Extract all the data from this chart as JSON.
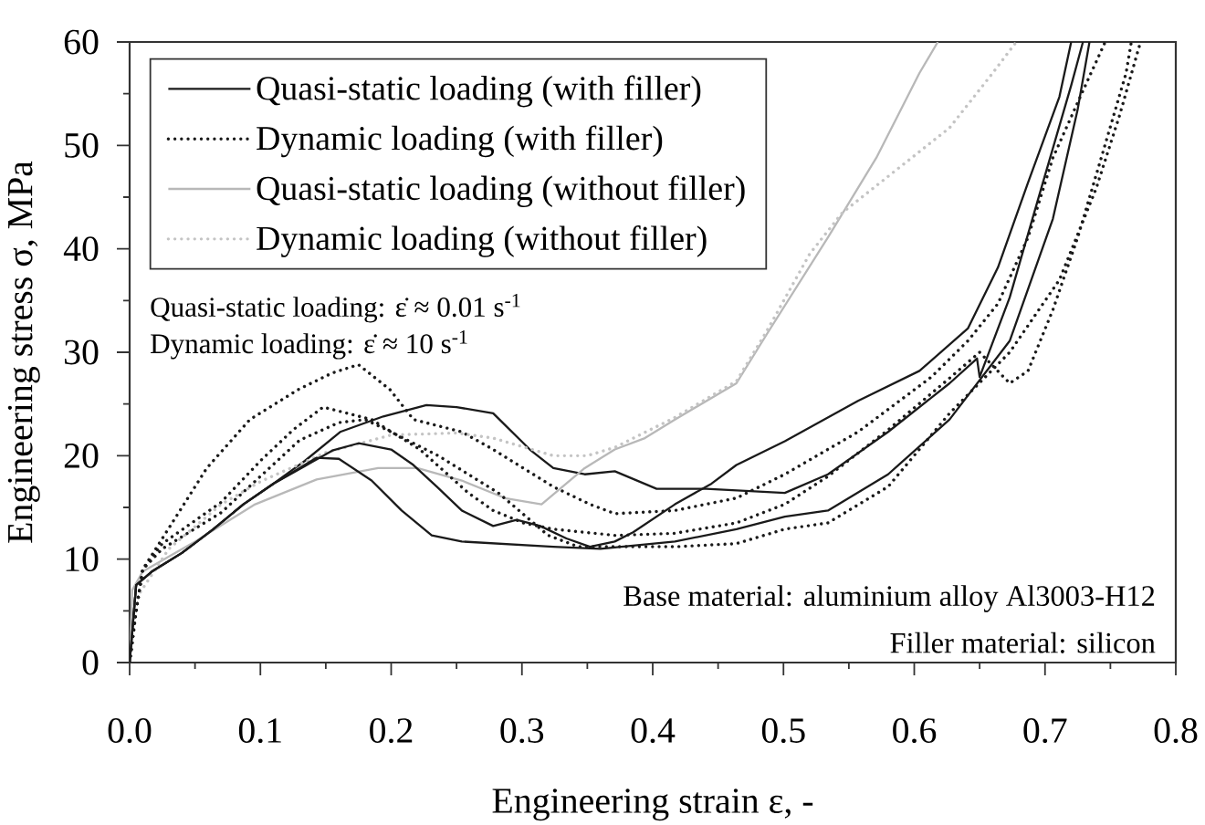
{
  "chart_data": {
    "type": "line",
    "xlabel": "Engineering strain ε, -",
    "ylabel": "Engineering stress σ, MPa",
    "xlim": [
      0,
      0.8
    ],
    "ylim": [
      0,
      60
    ],
    "xticks": [
      {
        "value": 0,
        "label": "0.0"
      },
      {
        "value": 0.05,
        "label": null
      },
      {
        "value": 0.1,
        "label": "0.1"
      },
      {
        "value": 0.15,
        "label": null
      },
      {
        "value": 0.2,
        "label": "0.2"
      },
      {
        "value": 0.25,
        "label": null
      },
      {
        "value": 0.3,
        "label": "0.3"
      },
      {
        "value": 0.35,
        "label": null
      },
      {
        "value": 0.4,
        "label": "0.4"
      },
      {
        "value": 0.45,
        "label": null
      },
      {
        "value": 0.5,
        "label": "0.5"
      },
      {
        "value": 0.55,
        "label": null
      },
      {
        "value": 0.6,
        "label": "0.6"
      },
      {
        "value": 0.65,
        "label": null
      },
      {
        "value": 0.7,
        "label": "0.7"
      },
      {
        "value": 0.75,
        "label": null
      },
      {
        "value": 0.8,
        "label": "0.8"
      }
    ],
    "yticks": [
      0,
      {
        "value": 5,
        "label": null
      },
      10,
      {
        "value": 15,
        "label": null
      },
      20,
      {
        "value": 25,
        "label": null
      },
      30,
      {
        "value": 35,
        "label": null
      },
      40,
      {
        "value": 45,
        "label": null
      },
      50,
      {
        "value": 55,
        "label": null
      },
      60
    ],
    "legend": "top left",
    "annotations": [
      "Quasi-static loading: ε̇ ≈ 0.01 s$^{-1}$",
      "Dynamic loading: ε̇ ≈ 10 s$^{-1}$",
      "Base material: aluminium alloy Al3003-H12",
      "Filler material: silicon"
    ],
    "series": [
      {
        "name": "Quasi-static loading (with filler)",
        "color": "#1a1a1a",
        "line_style": "solid",
        "x": [
          0,
          0.005,
          0.017,
          0.04,
          0.064,
          0.087,
          0.11,
          0.134,
          0.161,
          0.194,
          0.227,
          0.25,
          0.278,
          0.306,
          0.324,
          0.348,
          0.371,
          0.403,
          0.441,
          0.501,
          0.534,
          0.58,
          0.627,
          0.648,
          0.65,
          0.673,
          0.697,
          0.72,
          0.729
        ],
        "values": [
          0,
          7.5,
          8.8,
          10.6,
          12.9,
          15.3,
          17.3,
          19.5,
          22.3,
          23.8,
          24.9,
          24.7,
          24.1,
          20.6,
          18.8,
          18.2,
          18.5,
          16.8,
          16.8,
          16.4,
          18.2,
          22.3,
          27,
          29.4,
          27.6,
          35.3,
          45.8,
          55.8,
          60
        ]
      },
      {
        "name": "Dynamic loading (with filler)",
        "color": "#1a1a1a",
        "line_style": "dotted",
        "x": [
          0,
          0.005,
          0.01,
          0.025,
          0.059,
          0.092,
          0.129,
          0.155,
          0.175,
          0.199,
          0.217,
          0.254,
          0.278,
          0.301,
          0.324,
          0.352,
          0.371,
          0.417,
          0.464,
          0.501,
          0.557,
          0.613,
          0.641,
          0.664,
          0.687,
          0.706,
          0.728,
          0.746
        ],
        "values": [
          0,
          5,
          9,
          12,
          18.8,
          23.5,
          26.4,
          28,
          28.8,
          26.4,
          23.5,
          22.3,
          20.6,
          18.8,
          17,
          15.3,
          14.4,
          14.7,
          15.9,
          18.2,
          22.3,
          27.6,
          31.1,
          34.7,
          41.1,
          48.8,
          55,
          60
        ]
      },
      {
        "name": "Quasi-static loading (without filler)",
        "color": "#b8b8b8",
        "line_style": "solid",
        "x": [
          0,
          0.002,
          0.01,
          0.05,
          0.096,
          0.143,
          0.19,
          0.22,
          0.254,
          0.287,
          0.315,
          0.348,
          0.371,
          0.394,
          0.417,
          0.464,
          0.487,
          0.534,
          0.571,
          0.604,
          0.618
        ],
        "values": [
          0,
          7,
          8.8,
          11.7,
          15.3,
          17.7,
          18.8,
          18.8,
          17.6,
          15.9,
          15.3,
          18.8,
          20.6,
          21.7,
          23.5,
          27,
          31.7,
          41.1,
          48.8,
          57,
          60
        ]
      },
      {
        "name": "Dynamic loading (without filler)",
        "color": "#c4c4c4",
        "line_style": "dotted",
        "x": [
          0,
          0.004,
          0.03,
          0.07,
          0.1,
          0.15,
          0.2,
          0.25,
          0.278,
          0.324,
          0.35,
          0.371,
          0.417,
          0.464,
          0.487,
          0.52,
          0.545,
          0.58,
          0.627,
          0.66,
          0.678
        ],
        "values": [
          0,
          6,
          11,
          15.3,
          17.5,
          20.3,
          22,
          22.2,
          21.7,
          20,
          20,
          20.8,
          23.7,
          27.2,
          32,
          39.5,
          43.5,
          47,
          51.7,
          57,
          60
        ]
      },
      {
        "color": "#1a1a1a",
        "line_style": "solid",
        "x": [
          0,
          0.005,
          0.017,
          0.04,
          0.064,
          0.087,
          0.11,
          0.134,
          0.155,
          0.175,
          0.2,
          0.217,
          0.235,
          0.254,
          0.278,
          0.296,
          0.314,
          0.334,
          0.352,
          0.371,
          0.385,
          0.417,
          0.445,
          0.464,
          0.501,
          0.557,
          0.604,
          0.641,
          0.664,
          0.687,
          0.711,
          0.72
        ],
        "values": [
          0,
          7.5,
          8.8,
          10.6,
          12.9,
          15.3,
          17.3,
          19,
          20.5,
          21.2,
          20.6,
          19.1,
          17,
          14.7,
          13.2,
          13.8,
          13.2,
          12,
          11.2,
          11.7,
          12.6,
          15.3,
          17.3,
          19.1,
          21.4,
          25.3,
          28.2,
          32.3,
          38.2,
          46.4,
          54.7,
          60
        ]
      },
      {
        "color": "#1a1a1a",
        "line_style": "solid",
        "x": [
          0,
          0.005,
          0.017,
          0.04,
          0.064,
          0.087,
          0.11,
          0.143,
          0.16,
          0.185,
          0.208,
          0.231,
          0.254,
          0.324,
          0.36,
          0.417,
          0.464,
          0.501,
          0.534,
          0.58,
          0.627,
          0.673,
          0.706,
          0.725,
          0.734
        ],
        "values": [
          0,
          7.5,
          8.8,
          10.6,
          12.9,
          15.3,
          17.3,
          19.8,
          19.7,
          17.6,
          14.7,
          12.3,
          11.7,
          11.2,
          11,
          11.7,
          12.9,
          14.1,
          14.7,
          18.2,
          23.5,
          31.1,
          42.9,
          53.5,
          60
        ]
      },
      {
        "color": "#1a1a1a",
        "line_style": "dotted",
        "x": [
          0,
          0.005,
          0.01,
          0.025,
          0.07,
          0.1,
          0.125,
          0.148,
          0.185,
          0.222,
          0.259,
          0.278,
          0.301,
          0.324,
          0.371,
          0.417,
          0.464,
          0.501,
          0.534,
          0.58,
          0.627,
          0.65,
          0.673,
          0.687,
          0.706,
          0.725,
          0.743,
          0.762,
          0.766
        ],
        "values": [
          0,
          5,
          9,
          11.5,
          15.5,
          19.5,
          22.5,
          24.7,
          23.5,
          20.6,
          16.4,
          14.7,
          13.5,
          12.9,
          12.3,
          12.5,
          13.5,
          15.3,
          18,
          22.5,
          27.5,
          30,
          27,
          28.2,
          34.1,
          41.1,
          48.8,
          57,
          60
        ]
      },
      {
        "color": "#1a1a1a",
        "line_style": "dotted",
        "x": [
          0,
          0.005,
          0.01,
          0.025,
          0.07,
          0.1,
          0.13,
          0.16,
          0.18,
          0.2,
          0.236,
          0.282,
          0.32,
          0.343,
          0.417,
          0.464,
          0.501,
          0.534,
          0.58,
          0.627,
          0.673,
          0.711,
          0.739,
          0.757,
          0.773
        ],
        "values": [
          0,
          5,
          9,
          11,
          14.5,
          18,
          21.5,
          23.2,
          23.5,
          22.3,
          20,
          16.4,
          12.3,
          11.2,
          11.2,
          11.5,
          12.9,
          13.5,
          17,
          24.1,
          30,
          37,
          45.8,
          52.9,
          60
        ]
      }
    ]
  }
}
